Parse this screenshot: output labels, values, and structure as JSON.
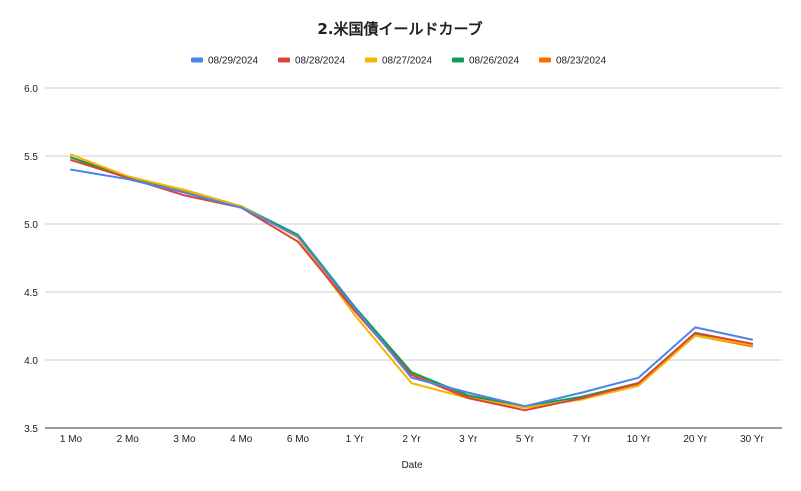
{
  "chart_data": {
    "type": "line",
    "title": "2.米国債イールドカーブ",
    "xlabel": "Date",
    "ylabel": "",
    "categories": [
      "1 Mo",
      "2 Mo",
      "3 Mo",
      "4 Mo",
      "6 Mo",
      "1 Yr",
      "2 Yr",
      "3 Yr",
      "5 Yr",
      "7 Yr",
      "10 Yr",
      "20 Yr",
      "30 Yr"
    ],
    "ylim": [
      3.5,
      6.0
    ],
    "yticks": [
      "6.0",
      "5.5",
      "5.0",
      "4.5",
      "4.0",
      "3.5"
    ],
    "grid": true,
    "legend_position": "top",
    "series": [
      {
        "name": "08/29/2024",
        "color": "#4a86e8",
        "values": [
          5.4,
          5.33,
          5.23,
          5.12,
          4.91,
          4.38,
          3.87,
          3.76,
          3.66,
          3.76,
          3.87,
          4.24,
          4.15
        ]
      },
      {
        "name": "08/28/2024",
        "color": "#db4437",
        "values": [
          5.47,
          5.34,
          5.21,
          5.12,
          4.87,
          4.36,
          3.89,
          3.72,
          3.63,
          3.72,
          3.83,
          4.2,
          4.12
        ]
      },
      {
        "name": "08/27/2024",
        "color": "#f4b400",
        "values": [
          5.51,
          5.35,
          5.25,
          5.13,
          4.9,
          4.33,
          3.83,
          3.72,
          3.65,
          3.71,
          3.81,
          4.18,
          4.11
        ]
      },
      {
        "name": "08/26/2024",
        "color": "#0f9d58",
        "values": [
          5.49,
          5.34,
          5.25,
          5.13,
          4.92,
          4.39,
          3.91,
          3.74,
          3.66,
          3.73,
          3.83,
          4.19,
          4.11
        ]
      },
      {
        "name": "08/23/2024",
        "color": "#ff6d01",
        "values": [
          5.49,
          5.35,
          5.24,
          5.13,
          4.91,
          4.37,
          3.9,
          3.73,
          3.65,
          3.71,
          3.82,
          4.18,
          4.1
        ]
      }
    ]
  }
}
